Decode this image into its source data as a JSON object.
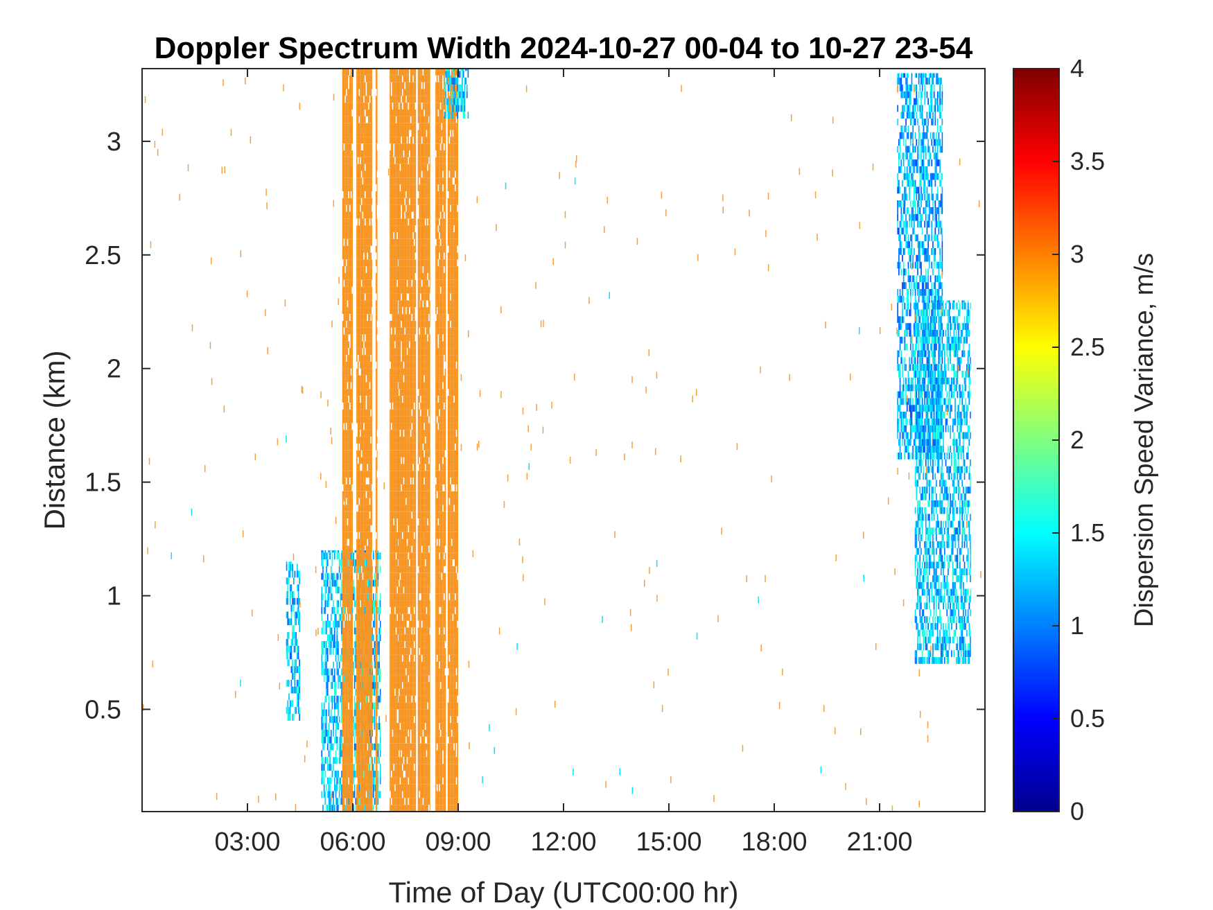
{
  "chart_data": {
    "type": "heatmap",
    "title": "Doppler Spectrum Width 2024-10-27 00-04 to 10-27 23-54",
    "xlabel": "Time of Day (UTC00:00 hr)",
    "ylabel": "Distance (km)",
    "xlim_hours": [
      0,
      24
    ],
    "ylim_km": [
      0.05,
      3.32
    ],
    "x_ticks": [
      {
        "value": 3,
        "label": "03:00"
      },
      {
        "value": 6,
        "label": "06:00"
      },
      {
        "value": 9,
        "label": "09:00"
      },
      {
        "value": 12,
        "label": "12:00"
      },
      {
        "value": 15,
        "label": "15:00"
      },
      {
        "value": 18,
        "label": "18:00"
      },
      {
        "value": 21,
        "label": "21:00"
      }
    ],
    "y_ticks": [
      {
        "value": 0.5,
        "label": "0.5"
      },
      {
        "value": 1,
        "label": "1"
      },
      {
        "value": 1.5,
        "label": "1.5"
      },
      {
        "value": 2,
        "label": "2"
      },
      {
        "value": 2.5,
        "label": "2.5"
      },
      {
        "value": 3,
        "label": "3"
      }
    ],
    "colorbar": {
      "label": "Dispersion Speed Variance, m/s",
      "colormap": "jet",
      "range": [
        0,
        4
      ],
      "ticks": [
        {
          "value": 0,
          "label": "0"
        },
        {
          "value": 0.5,
          "label": "0.5"
        },
        {
          "value": 1,
          "label": "1"
        },
        {
          "value": 1.5,
          "label": "1.5"
        },
        {
          "value": 2,
          "label": "2"
        },
        {
          "value": 2.5,
          "label": "2.5"
        },
        {
          "value": 3,
          "label": "3"
        },
        {
          "value": 3.5,
          "label": "3.5"
        },
        {
          "value": 4,
          "label": "4"
        }
      ]
    },
    "regions": [
      {
        "t_start": 4.1,
        "t_end": 4.5,
        "z_min": 0.45,
        "z_max": 1.15,
        "value": 1.3
      },
      {
        "t_start": 5.1,
        "t_end": 6.8,
        "z_min": 0.05,
        "z_max": 1.2,
        "value": 1.3
      },
      {
        "t_start": 5.7,
        "t_end": 6.0,
        "z_min": 0.05,
        "z_max": 3.32,
        "value": 2.8
      },
      {
        "t_start": 6.1,
        "t_end": 6.55,
        "z_min": 0.05,
        "z_max": 3.32,
        "value": 2.8
      },
      {
        "t_start": 6.65,
        "t_end": 6.7,
        "z_min": 0.05,
        "z_max": 3.32,
        "value": 2.8
      },
      {
        "t_start": 7.05,
        "t_end": 7.3,
        "z_min": 0.05,
        "z_max": 3.32,
        "value": 2.8
      },
      {
        "t_start": 7.3,
        "t_end": 7.8,
        "z_min": 0.05,
        "z_max": 3.32,
        "value": 2.8
      },
      {
        "t_start": 7.85,
        "t_end": 8.2,
        "z_min": 0.05,
        "z_max": 3.32,
        "value": 2.8
      },
      {
        "t_start": 8.35,
        "t_end": 8.65,
        "z_min": 0.05,
        "z_max": 3.32,
        "value": 2.8
      },
      {
        "t_start": 8.7,
        "t_end": 9.0,
        "z_min": 0.05,
        "z_max": 3.32,
        "value": 2.8
      },
      {
        "t_start": 8.6,
        "t_end": 9.3,
        "z_min": 3.1,
        "z_max": 3.32,
        "value": 1.3
      },
      {
        "t_start": 21.5,
        "t_end": 22.8,
        "z_min": 1.6,
        "z_max": 3.3,
        "value": 1.2
      },
      {
        "t_start": 22.0,
        "t_end": 23.6,
        "z_min": 0.7,
        "z_max": 2.3,
        "value": 1.3
      }
    ]
  }
}
